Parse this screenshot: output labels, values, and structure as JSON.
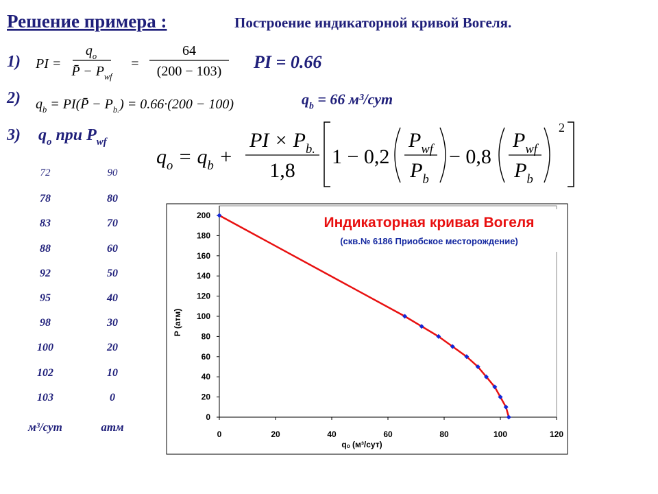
{
  "header": {
    "title": "Решение примера :",
    "subtitle": "Построение индикаторной кривой Вогеля."
  },
  "formulas": {
    "f1": {
      "label": "1)",
      "lhs": "PI =",
      "frac1_num": [
        "q",
        {
          "sub": "o"
        }
      ],
      "frac1_den": [
        "P̄ − P",
        {
          "sub": "wf"
        }
      ],
      "eq": "=",
      "frac2_num": "64",
      "frac2_den": "(200 − 103)",
      "result": "PI = 0.66"
    },
    "f2": {
      "label": "2)",
      "expr": [
        "q",
        {
          "sub": "b"
        },
        " = PI(P̄ − P",
        {
          "sub": "b."
        },
        ") = 0.66·(200 − 100)"
      ],
      "result": [
        "q",
        {
          "sub": "b"
        },
        " = 66 м³/сут"
      ]
    },
    "f3": {
      "label": "3)",
      "caption": [
        "q",
        {
          "sub": "o"
        },
        " при P",
        {
          "sub": "wf"
        }
      ],
      "lhs": [
        "q",
        {
          "sub": "o"
        },
        " = q",
        {
          "sub": "b"
        },
        " +"
      ],
      "frac_num": [
        "PI × P",
        {
          "sub": "b."
        }
      ],
      "frac_den": "1,8",
      "term1": "1 − 0,2",
      "ratio1_num": [
        "P",
        {
          "sub": "wf"
        }
      ],
      "ratio1_den": [
        "P",
        {
          "sub": "b"
        }
      ],
      "term2": "− 0,8",
      "ratio2_num": [
        "P",
        {
          "sub": "wf"
        }
      ],
      "ratio2_den": [
        "P",
        {
          "sub": "b"
        }
      ],
      "power": "2"
    }
  },
  "table": {
    "rows": [
      [
        72,
        90
      ],
      [
        78,
        80
      ],
      [
        83,
        70
      ],
      [
        88,
        60
      ],
      [
        92,
        50
      ],
      [
        95,
        40
      ],
      [
        98,
        30
      ],
      [
        100,
        20
      ],
      [
        102,
        10
      ],
      [
        103,
        0
      ]
    ],
    "units": [
      "м³/сут",
      "атм"
    ]
  },
  "chart_data": {
    "type": "line",
    "title": "Индикаторная кривая Вогеля",
    "subtitle": "(скв.№ 6186 Приобское месторождение)",
    "x_label": "qₒ (м³/сут)",
    "y_label": "P (атм)",
    "x": [
      0,
      66,
      72,
      78,
      83,
      88,
      92,
      95,
      98,
      100,
      102,
      103
    ],
    "series": [
      {
        "color": "#e81010",
        "marker_color": "#1428d8",
        "values": [
          200,
          100,
          90,
          80,
          70,
          60,
          50,
          40,
          30,
          20,
          10,
          0
        ]
      }
    ],
    "xlim": [
      0,
      120
    ],
    "xticks": [
      0,
      20,
      40,
      60,
      80,
      100,
      120
    ],
    "ylim": [
      0,
      200
    ],
    "yticks": [
      0,
      20,
      40,
      60,
      80,
      100,
      120,
      140,
      160,
      180,
      200
    ],
    "grid": false
  }
}
